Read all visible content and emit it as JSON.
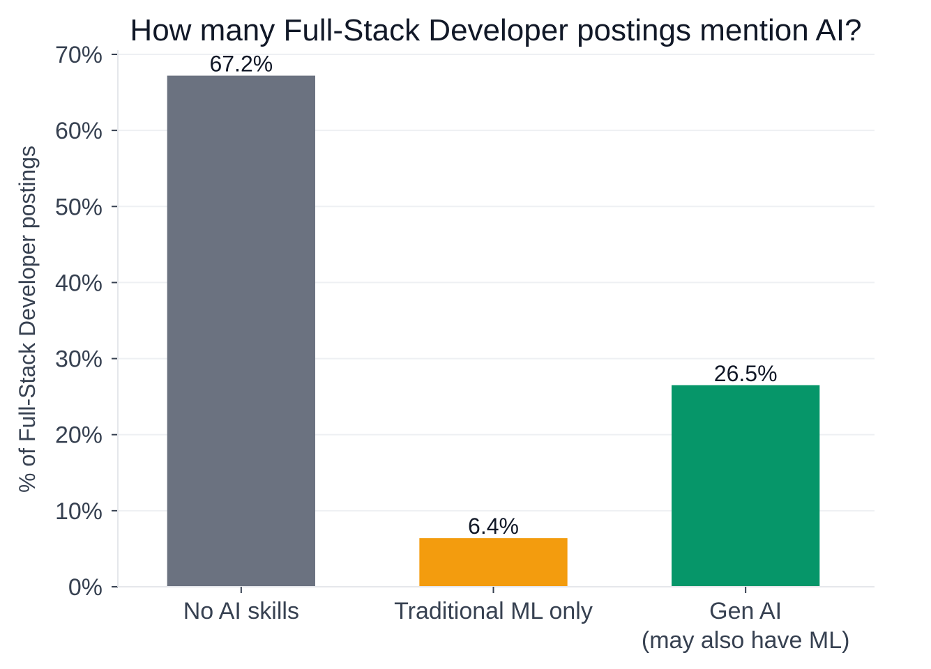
{
  "chart_data": {
    "type": "bar",
    "title": "How many Full-Stack Developer postings mention AI?",
    "xlabel": "",
    "ylabel": "% of Full-Stack Developer postings",
    "categories": [
      [
        "No AI skills"
      ],
      [
        "Traditional ML only"
      ],
      [
        "Gen AI",
        "(may also have ML)"
      ]
    ],
    "values": [
      67.2,
      6.4,
      26.5
    ],
    "data_labels": [
      "67.2%",
      "6.4%",
      "26.5%"
    ],
    "colors": [
      "#6b7280",
      "#f39c0e",
      "#069669"
    ],
    "ylim": [
      0,
      70
    ],
    "yticks": [
      0,
      10,
      20,
      30,
      40,
      50,
      60,
      70
    ],
    "ytick_labels": [
      "0%",
      "10%",
      "20%",
      "30%",
      "40%",
      "50%",
      "60%",
      "70%"
    ],
    "grid": true,
    "grid_axis": "y"
  }
}
